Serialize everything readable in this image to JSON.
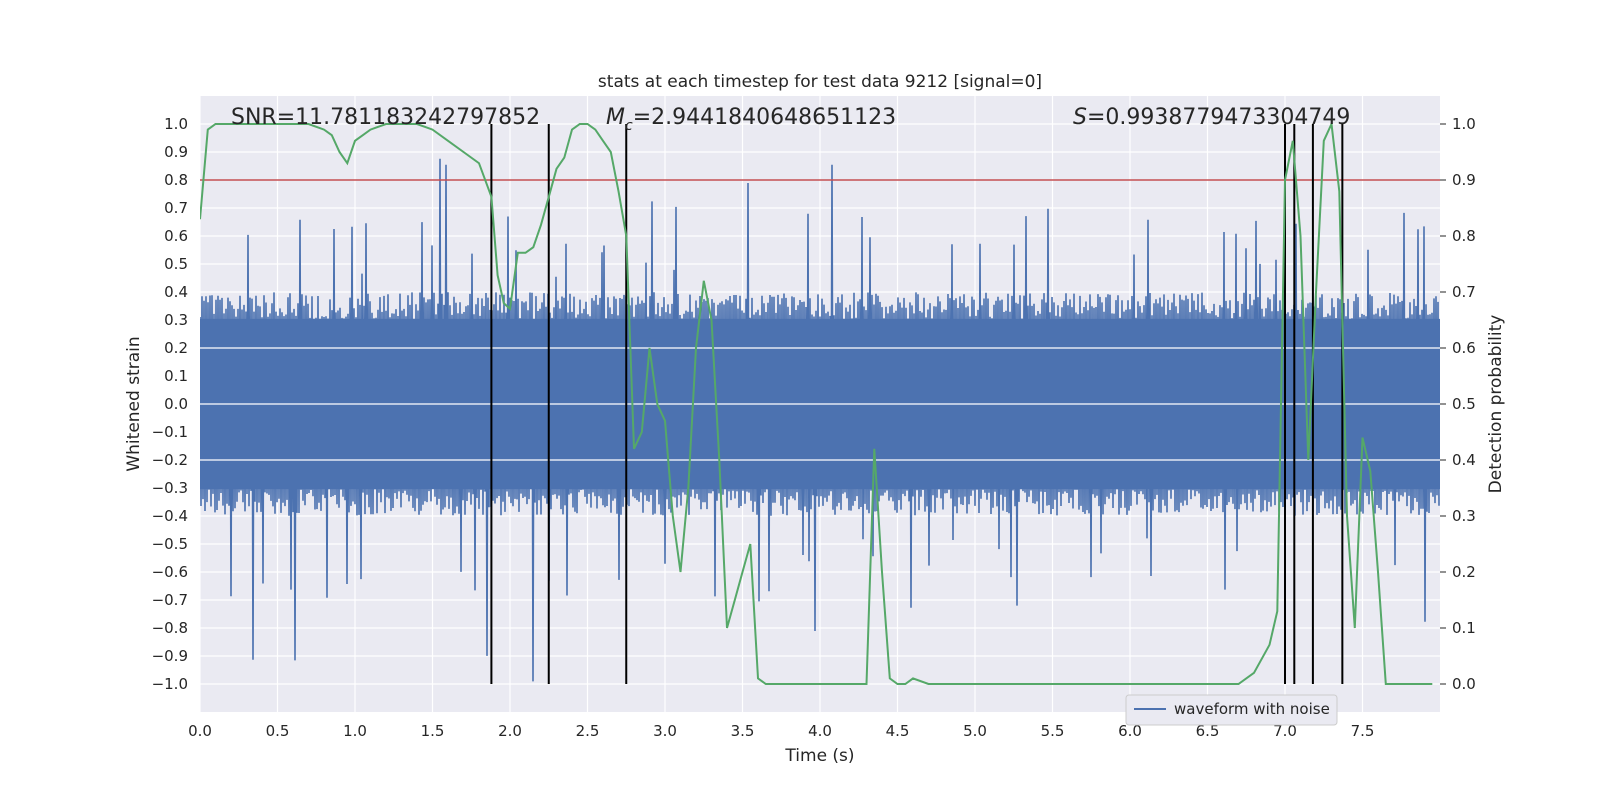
{
  "chart_data": {
    "type": "line",
    "title": "stats at each timestep for test data 9212 [signal=0]",
    "xlabel": "Time (s)",
    "ylabel": "Whitened strain",
    "y2label": "Detection probability",
    "xlim": [
      0.0,
      8.0
    ],
    "ylim": [
      -1.1,
      1.1
    ],
    "y2lim": [
      -0.05,
      1.05
    ],
    "xticks": [
      "0.0",
      "0.5",
      "1.0",
      "1.5",
      "2.0",
      "2.5",
      "3.0",
      "3.5",
      "4.0",
      "4.5",
      "5.0",
      "5.5",
      "6.0",
      "6.5",
      "7.0",
      "7.5"
    ],
    "yticks": [
      "1.0",
      "0.9",
      "0.8",
      "0.7",
      "0.6",
      "0.5",
      "0.4",
      "0.3",
      "0.2",
      "0.1",
      "0.0",
      "−0.1",
      "−0.2",
      "−0.3",
      "−0.4",
      "−0.5",
      "−0.6",
      "−0.7",
      "−0.8",
      "−0.9",
      "−1.0"
    ],
    "y2ticks": [
      "1.0",
      "0.9",
      "0.8",
      "0.7",
      "0.6",
      "0.5",
      "0.4",
      "0.3",
      "0.2",
      "0.1",
      "0.0"
    ],
    "annotations": {
      "snr": "SNR=11.781183242797852",
      "mc_symbol": "M",
      "mc_sub": "c",
      "mc_value": "=2.9441840648651123",
      "s_symbol": "S",
      "s_value": "=0.9938779473304749"
    },
    "threshold": {
      "y": 0.8,
      "color": "#c44e52"
    },
    "vertical_lines_x": [
      1.88,
      2.25,
      2.75,
      7.0,
      7.06,
      7.18,
      7.37
    ],
    "legend": {
      "label": "waveform with noise",
      "position": "lower-right"
    },
    "grid": true,
    "series": [
      {
        "name": "waveform with noise",
        "axis": "left",
        "color": "#4c72b0",
        "style": "dense-noise",
        "core_amplitude": 0.38,
        "max_spike": 1.0
      },
      {
        "axis": "right",
        "color": "#55a868",
        "x": [
          0.0,
          0.05,
          0.1,
          0.2,
          0.3,
          0.4,
          0.5,
          0.6,
          0.7,
          0.8,
          0.85,
          0.9,
          0.95,
          1.0,
          1.05,
          1.1,
          1.2,
          1.3,
          1.4,
          1.5,
          1.6,
          1.7,
          1.8,
          1.88,
          1.92,
          1.96,
          2.0,
          2.05,
          2.1,
          2.15,
          2.2,
          2.25,
          2.3,
          2.35,
          2.4,
          2.45,
          2.5,
          2.55,
          2.6,
          2.65,
          2.7,
          2.75,
          2.8,
          2.85,
          2.9,
          2.95,
          3.0,
          3.05,
          3.1,
          3.15,
          3.2,
          3.25,
          3.3,
          3.35,
          3.4,
          3.45,
          3.5,
          3.55,
          3.6,
          3.65,
          3.7,
          3.8,
          3.9,
          4.0,
          4.1,
          4.2,
          4.3,
          4.35,
          4.4,
          4.45,
          4.5,
          4.55,
          4.6,
          4.7,
          5.0,
          5.3,
          5.6,
          6.0,
          6.4,
          6.6,
          6.7,
          6.8,
          6.9,
          6.95,
          7.0,
          7.05,
          7.1,
          7.15,
          7.2,
          7.25,
          7.3,
          7.35,
          7.4,
          7.45,
          7.5,
          7.55,
          7.6,
          7.65,
          7.7,
          7.75,
          7.8,
          7.9,
          7.95
        ],
        "y": [
          0.83,
          0.99,
          1.0,
          1.0,
          1.0,
          1.0,
          1.0,
          1.0,
          1.0,
          0.99,
          0.98,
          0.95,
          0.93,
          0.97,
          0.98,
          0.99,
          1.0,
          1.0,
          1.0,
          0.99,
          0.97,
          0.95,
          0.93,
          0.87,
          0.73,
          0.68,
          0.67,
          0.77,
          0.77,
          0.78,
          0.82,
          0.87,
          0.92,
          0.94,
          0.99,
          1.0,
          1.0,
          0.99,
          0.97,
          0.95,
          0.88,
          0.8,
          0.42,
          0.45,
          0.6,
          0.5,
          0.47,
          0.3,
          0.2,
          0.35,
          0.6,
          0.72,
          0.65,
          0.4,
          0.1,
          0.15,
          0.2,
          0.25,
          0.01,
          0.0,
          0.0,
          0.0,
          0.0,
          0.0,
          0.0,
          0.0,
          0.0,
          0.42,
          0.2,
          0.01,
          0.0,
          0.0,
          0.01,
          0.0,
          0.0,
          0.0,
          0.0,
          0.0,
          0.0,
          0.0,
          0.0,
          0.02,
          0.07,
          0.13,
          0.9,
          0.97,
          0.8,
          0.4,
          0.7,
          0.97,
          1.0,
          0.88,
          0.3,
          0.1,
          0.44,
          0.38,
          0.2,
          0.0,
          0.0,
          0.0,
          0.0,
          0.0,
          0.0
        ]
      }
    ]
  }
}
